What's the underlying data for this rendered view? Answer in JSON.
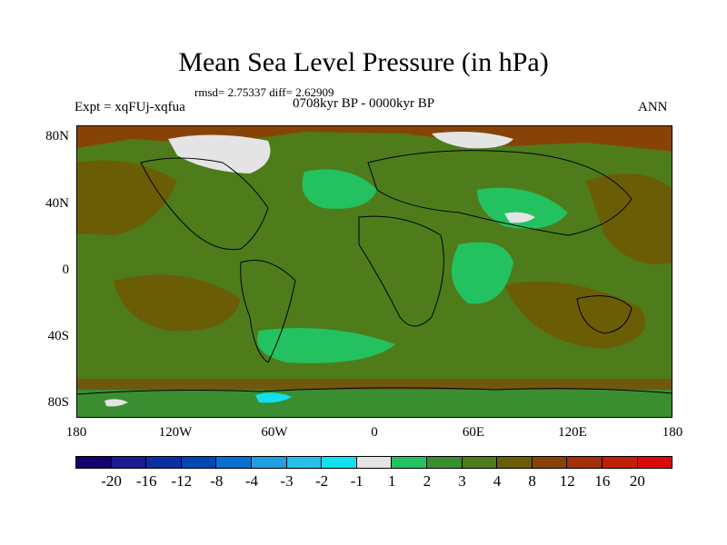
{
  "title": "Mean Sea Level Pressure (in hPa)",
  "stats_text": "rmsd= 2.75337 diff= 2.62909",
  "experiment_label": "Expt = xqFUj-xqfua",
  "period_label": "0708kyr BP - 0000kyr BP",
  "season_label": "ANN",
  "lat_labels": [
    "80N",
    "40N",
    "0",
    "40S",
    "80S"
  ],
  "lon_labels": [
    "180",
    "120W",
    "60W",
    "0",
    "60E",
    "120E",
    "180"
  ],
  "colorbar": {
    "levels": [
      "-20",
      "-16",
      "-12",
      "-8",
      "-4",
      "-3",
      "-2",
      "-1",
      "1",
      "2",
      "3",
      "4",
      "8",
      "12",
      "16",
      "20"
    ],
    "colors": [
      "#14006e",
      "#1b1a8f",
      "#0a2fa0",
      "#0046b4",
      "#0a6fd2",
      "#1f9ee0",
      "#27bfe6",
      "#10e0f0",
      "#e4e4e4",
      "#24c160",
      "#3a8e30",
      "#4e7c1a",
      "#6a5d05",
      "#874307",
      "#a53008",
      "#c21f09",
      "#dc0a0a"
    ]
  },
  "map_colors": {
    "base": "#4e7c1a",
    "positive": "#6a5d05",
    "strong_positive": "#874307",
    "light_green": "#24c160",
    "mid_green": "#3a8e30",
    "near_zero": "#e4e4e4",
    "negative": "#10e0f0"
  }
}
